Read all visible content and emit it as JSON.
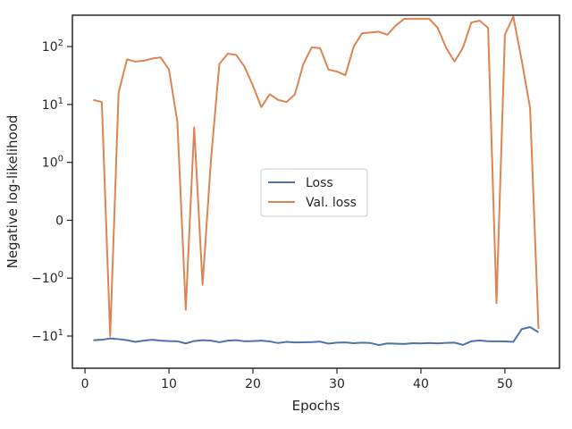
{
  "chart_data": {
    "type": "line",
    "title": "",
    "xlabel": "Epochs",
    "ylabel": "Negative log-likelihood",
    "yscale": "symlog",
    "grid": false,
    "legend_position": "center",
    "xlim": [
      -1.5,
      56.5
    ],
    "x_ticks": [
      0,
      10,
      20,
      30,
      40,
      50
    ],
    "x_tick_labels": [
      "0",
      "10",
      "20",
      "30",
      "40",
      "50"
    ],
    "y_ticks": [
      {
        "value": -10,
        "sign": "−",
        "base": "10",
        "exp": "1"
      },
      {
        "value": -1,
        "sign": "−",
        "base": "10",
        "exp": "0"
      },
      {
        "value": 0,
        "sign": "",
        "base": "0",
        "exp": ""
      },
      {
        "value": 1,
        "sign": "",
        "base": "10",
        "exp": "0"
      },
      {
        "value": 10,
        "sign": "",
        "base": "10",
        "exp": "1"
      },
      {
        "value": 100,
        "sign": "",
        "base": "10",
        "exp": "2"
      }
    ],
    "x": [
      1,
      2,
      3,
      4,
      5,
      6,
      7,
      8,
      9,
      10,
      11,
      12,
      13,
      14,
      15,
      16,
      17,
      18,
      19,
      20,
      21,
      22,
      23,
      24,
      25,
      26,
      27,
      28,
      29,
      30,
      31,
      32,
      33,
      34,
      35,
      36,
      37,
      38,
      39,
      40,
      41,
      42,
      43,
      44,
      45,
      46,
      47,
      48,
      49,
      50,
      51,
      52,
      53,
      54
    ],
    "series": [
      {
        "name": "Loss",
        "color": "#4c72b0",
        "values": [
          -11.8,
          -11.6,
          -11.0,
          -11.3,
          -11.8,
          -12.6,
          -12.0,
          -11.6,
          -12.0,
          -12.2,
          -12.3,
          -13.4,
          -12.2,
          -11.8,
          -12.0,
          -12.8,
          -12.0,
          -11.8,
          -12.3,
          -12.2,
          -12.0,
          -12.4,
          -13.2,
          -12.6,
          -12.9,
          -12.8,
          -12.7,
          -12.5,
          -13.5,
          -13.0,
          -12.9,
          -13.3,
          -13.0,
          -13.2,
          -14.3,
          -13.4,
          -13.5,
          -13.7,
          -13.3,
          -13.4,
          -13.2,
          -13.4,
          -13.1,
          -13.0,
          -14.2,
          -12.3,
          -11.9,
          -12.3,
          -12.3,
          -12.4,
          -12.6,
          -7.6,
          -7.0,
          -8.6
        ]
      },
      {
        "name": "Val. loss",
        "color": "#dd8452",
        "values": [
          12.0,
          11.0,
          -10.0,
          16.0,
          60.0,
          55.0,
          57.0,
          62.0,
          65.0,
          40.0,
          5.0,
          -3.5,
          4.0,
          -1.3,
          1.1,
          50.0,
          75.0,
          72.0,
          45.0,
          21.0,
          9.0,
          15.0,
          12.0,
          11.0,
          15.0,
          50.0,
          97.0,
          94.0,
          40.0,
          37.0,
          32.0,
          100.0,
          170.0,
          175.0,
          180.0,
          160.0,
          230.0,
          300.0,
          300.0,
          300.0,
          300.0,
          210.0,
          95.0,
          55.0,
          95.0,
          260.0,
          280.0,
          210.0,
          -2.7,
          160.0,
          330.0,
          58.0,
          8.6,
          -7.5
        ]
      }
    ]
  }
}
